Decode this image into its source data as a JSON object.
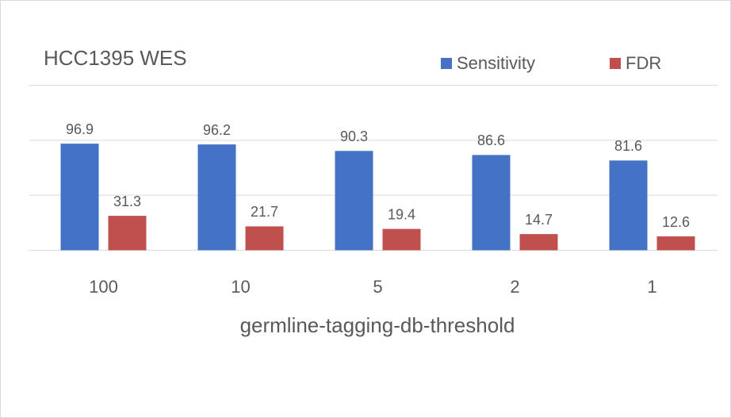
{
  "chart_data": {
    "type": "bar",
    "title": "HCC1395 WES",
    "x_label": "germline-tagging-db-threshold",
    "categories": [
      "100",
      "10",
      "5",
      "2",
      "1"
    ],
    "series": [
      {
        "name": "Sensitivity",
        "color": "#4472c4",
        "values": [
          96.9,
          96.2,
          90.3,
          86.6,
          81.6
        ]
      },
      {
        "name": "FDR",
        "color": "#c0504d",
        "values": [
          31.3,
          21.7,
          19.4,
          14.7,
          12.6
        ]
      }
    ],
    "ylim": [
      0,
      150
    ],
    "yticks": [
      0,
      50,
      100,
      150
    ],
    "grid": true,
    "legend": "top-right"
  }
}
